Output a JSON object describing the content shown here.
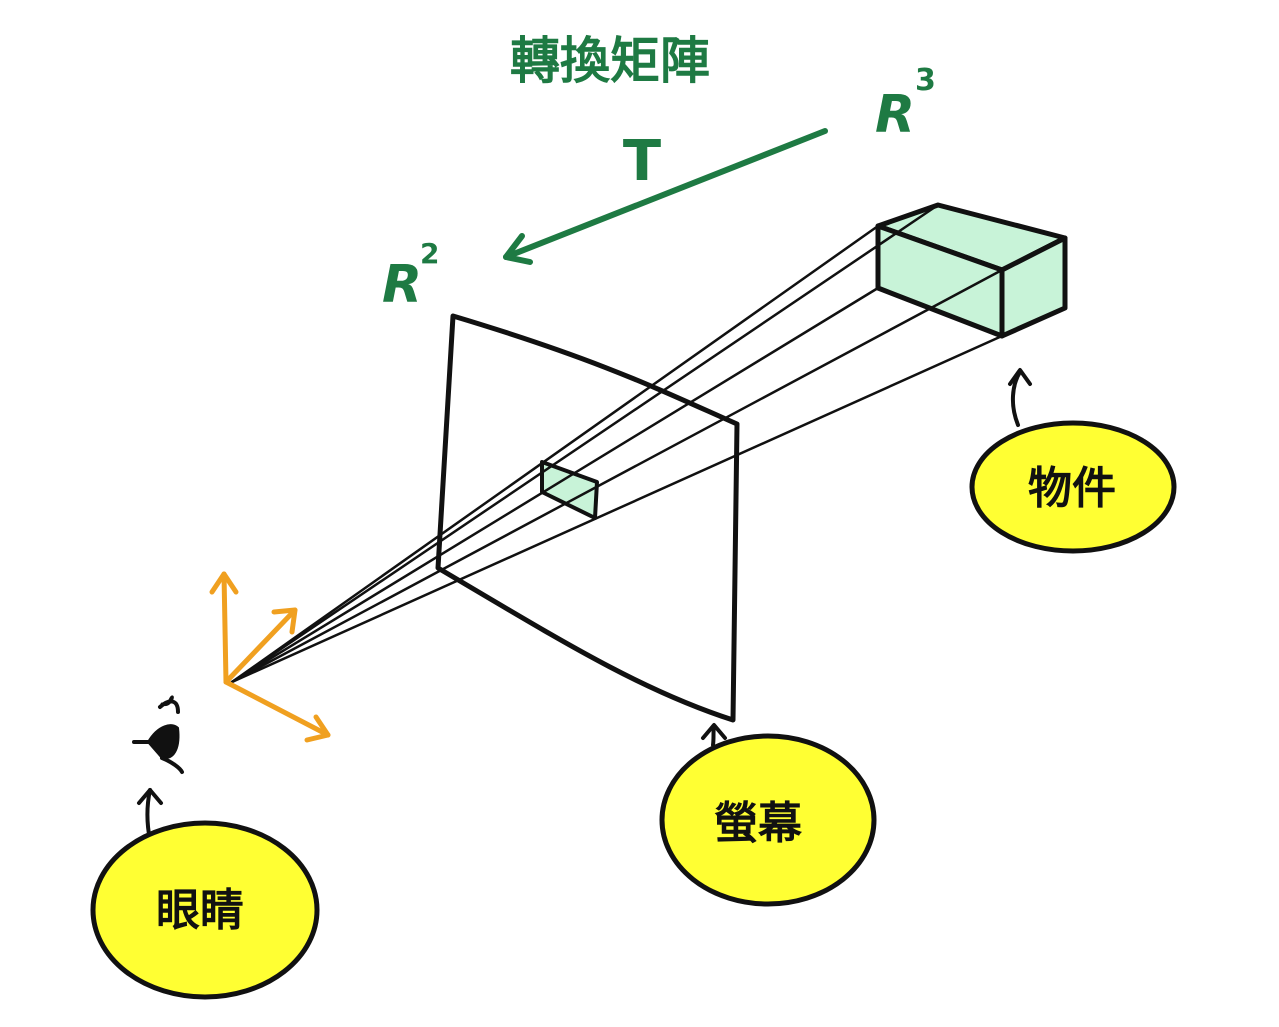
{
  "title": "轉換矩陣",
  "transform_symbol": "T",
  "spaces": {
    "source": "R",
    "source_exp": "3",
    "target": "R",
    "target_exp": "2"
  },
  "labels": {
    "eye": "眼睛",
    "screen": "螢幕",
    "object": "物件"
  },
  "colors": {
    "green": "#1e7a43",
    "orange": "#f0a020",
    "yellow": "#ffff33",
    "mint": "#c8f3d8",
    "ink": "#111111"
  },
  "icons": {
    "eye": "eye-icon",
    "axes": "coordinate-axes-icon"
  }
}
